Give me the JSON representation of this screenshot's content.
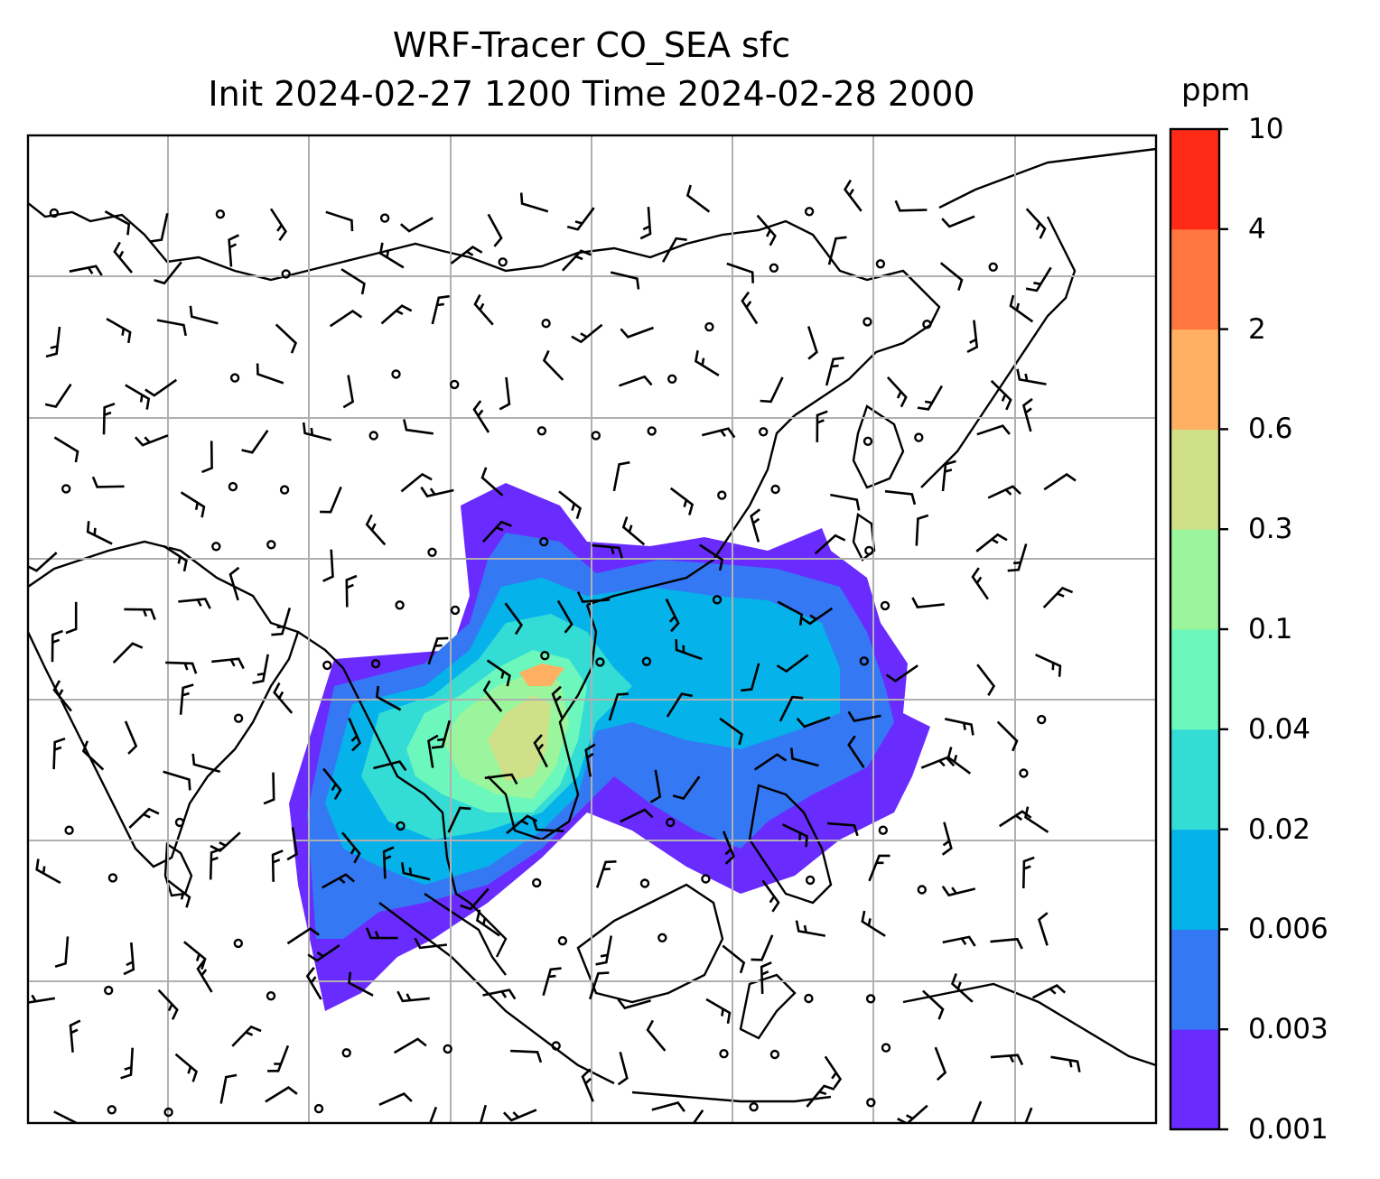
{
  "title": {
    "line1": "WRF-Tracer CO_SEA sfc",
    "line2": "Init 2024-02-27 1200 Time 2024-02-28 2000"
  },
  "colorbar": {
    "unit": "ppm",
    "levels": [
      "0.001",
      "0.003",
      "0.006",
      "0.02",
      "0.04",
      "0.1",
      "0.3",
      "0.6",
      "2",
      "4",
      "10"
    ],
    "colors": [
      "#6a2bff",
      "#3478f4",
      "#06b2ea",
      "#34dcd6",
      "#6cf7bd",
      "#9af59c",
      "#cfe088",
      "#ffb062",
      "#ff7640",
      "#ff2b17"
    ]
  },
  "map": {
    "field": "CO_SEA tracer concentration",
    "overlay": "wind barbs",
    "gridlines": true,
    "coastlines": true
  }
}
